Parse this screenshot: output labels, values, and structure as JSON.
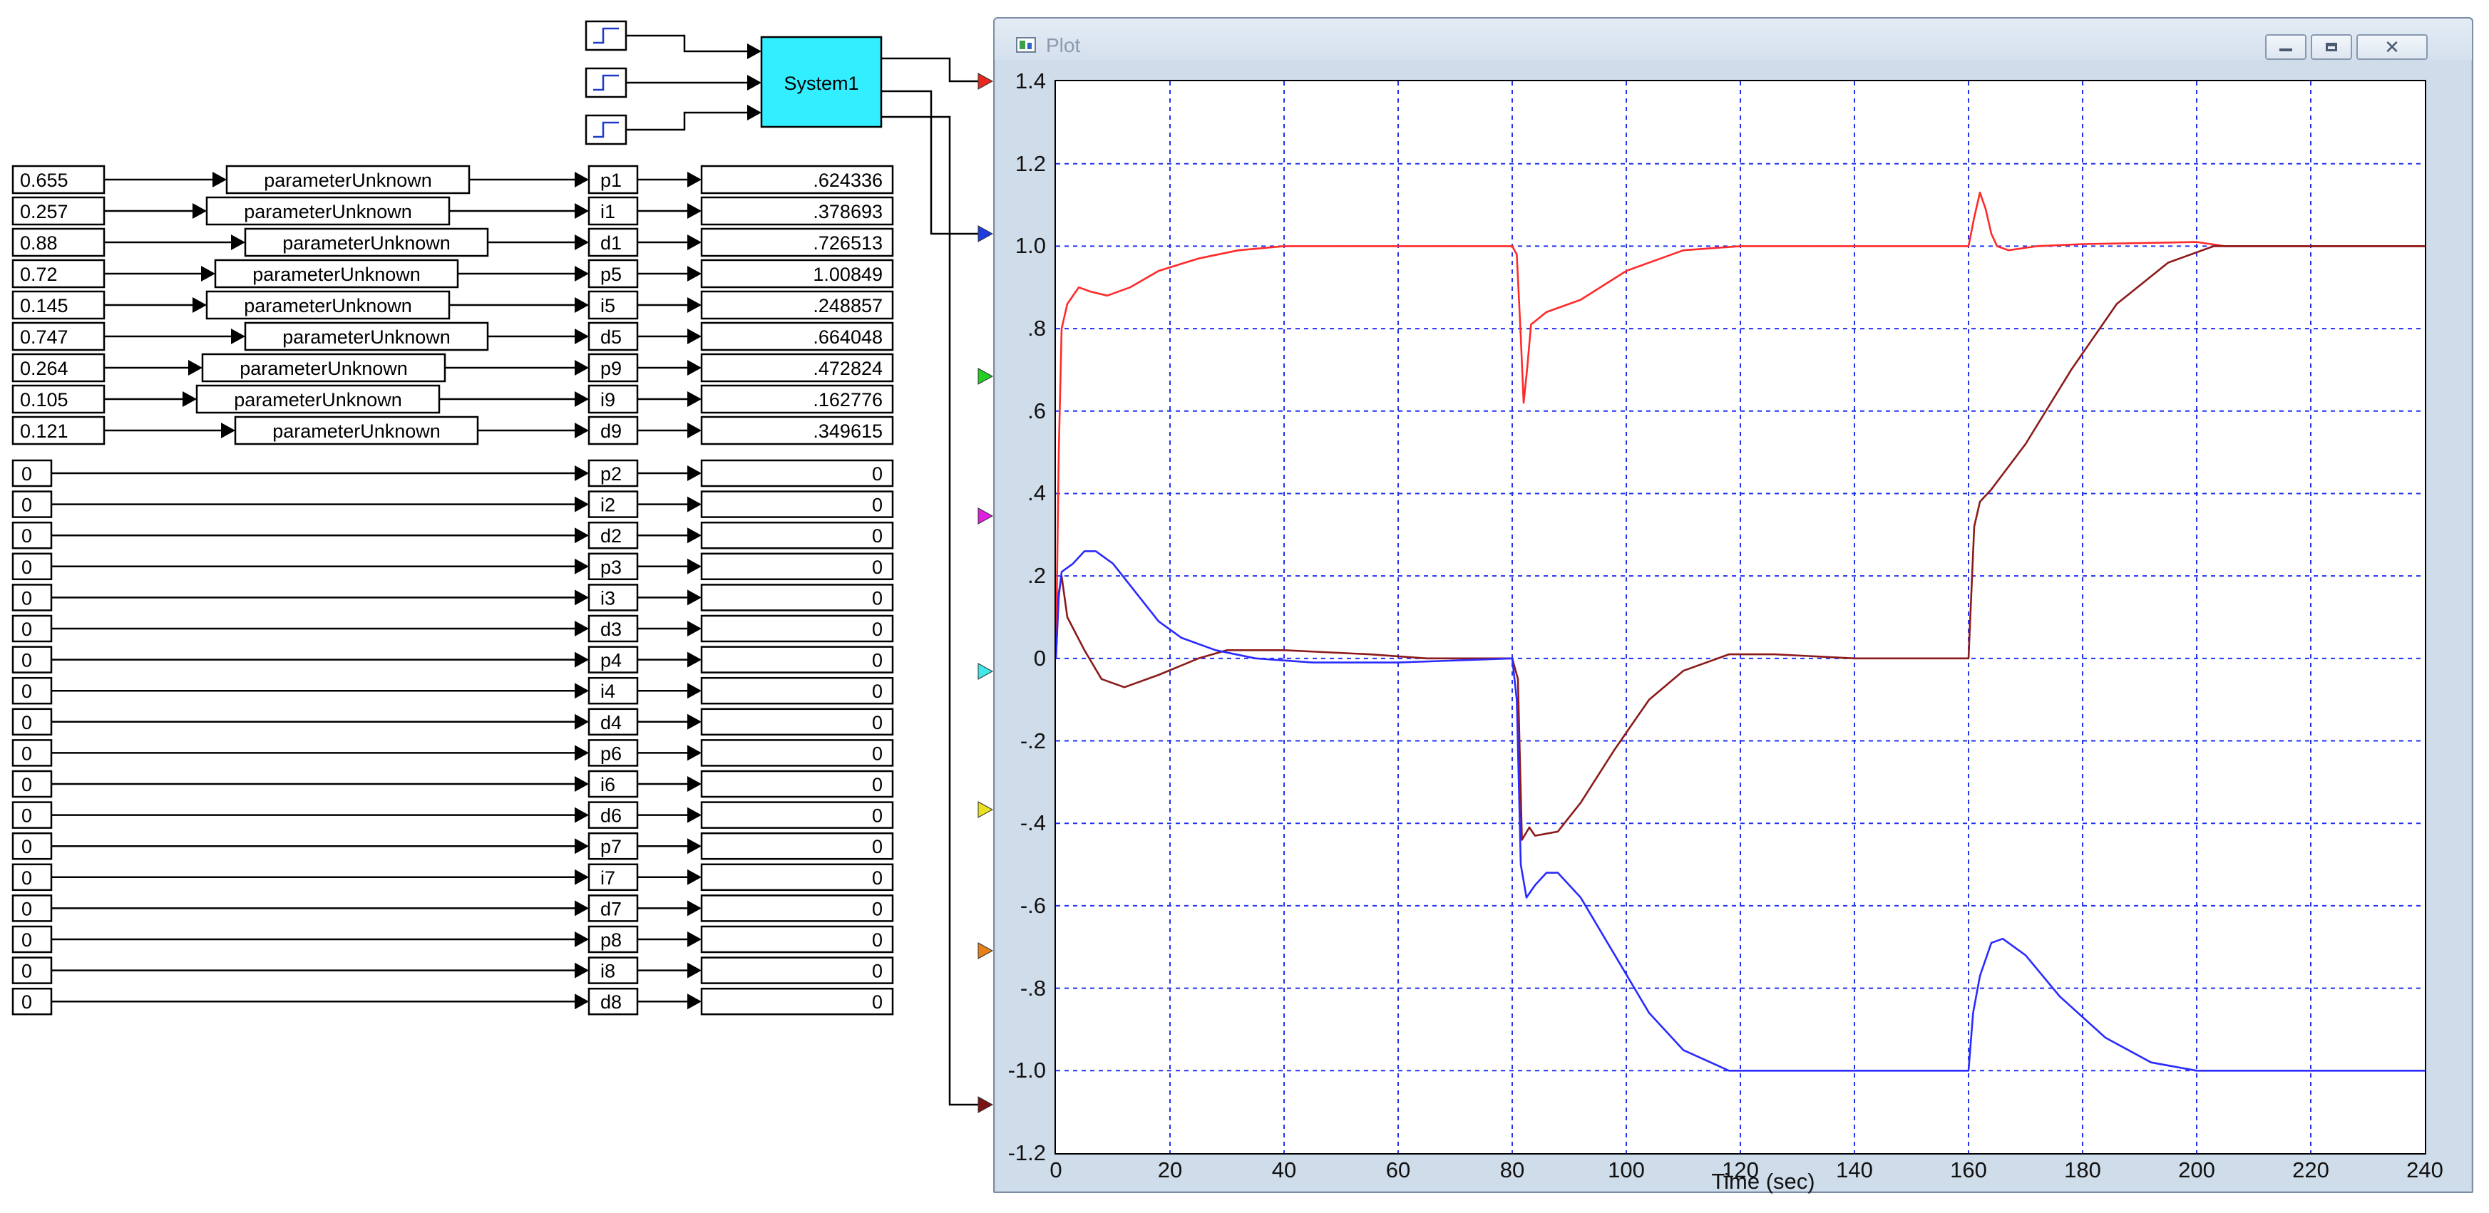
{
  "system_block": {
    "label": "System1",
    "color": "#33eeff"
  },
  "step_sources": [
    "step-1",
    "step-2",
    "step-3"
  ],
  "param_rows": [
    {
      "value": "0.655",
      "block": "parameterUnknown",
      "port": "p1",
      "output": ".624336"
    },
    {
      "value": "0.257",
      "block": "parameterUnknown",
      "port": "i1",
      "output": ".378693"
    },
    {
      "value": "0.88",
      "block": "parameterUnknown",
      "port": "d1",
      "output": ".726513"
    },
    {
      "value": "0.72",
      "block": "parameterUnknown",
      "port": "p5",
      "output": "1.00849"
    },
    {
      "value": "0.145",
      "block": "parameterUnknown",
      "port": "i5",
      "output": ".248857"
    },
    {
      "value": "0.747",
      "block": "parameterUnknown",
      "port": "d5",
      "output": ".664048"
    },
    {
      "value": "0.264",
      "block": "parameterUnknown",
      "port": "p9",
      "output": ".472824"
    },
    {
      "value": "0.105",
      "block": "parameterUnknown",
      "port": "i9",
      "output": ".162776"
    },
    {
      "value": "0.121",
      "block": "parameterUnknown",
      "port": "d9",
      "output": ".349615"
    }
  ],
  "zero_rows": [
    {
      "value": "0",
      "port": "p2",
      "output": "0"
    },
    {
      "value": "0",
      "port": "i2",
      "output": "0"
    },
    {
      "value": "0",
      "port": "d2",
      "output": "0"
    },
    {
      "value": "0",
      "port": "p3",
      "output": "0"
    },
    {
      "value": "0",
      "port": "i3",
      "output": "0"
    },
    {
      "value": "0",
      "port": "d3",
      "output": "0"
    },
    {
      "value": "0",
      "port": "p4",
      "output": "0"
    },
    {
      "value": "0",
      "port": "i4",
      "output": "0"
    },
    {
      "value": "0",
      "port": "d4",
      "output": "0"
    },
    {
      "value": "0",
      "port": "p6",
      "output": "0"
    },
    {
      "value": "0",
      "port": "i6",
      "output": "0"
    },
    {
      "value": "0",
      "port": "d6",
      "output": "0"
    },
    {
      "value": "0",
      "port": "p7",
      "output": "0"
    },
    {
      "value": "0",
      "port": "i7",
      "output": "0"
    },
    {
      "value": "0",
      "port": "d7",
      "output": "0"
    },
    {
      "value": "0",
      "port": "p8",
      "output": "0"
    },
    {
      "value": "0",
      "port": "i8",
      "output": "0"
    },
    {
      "value": "0",
      "port": "d8",
      "output": "0"
    }
  ],
  "plot_inputs": [
    {
      "name": "red",
      "color": "#e8281e"
    },
    {
      "name": "blue",
      "color": "#1e3ce0"
    },
    {
      "name": "green",
      "color": "#22d022"
    },
    {
      "name": "magenta",
      "color": "#e020e0"
    },
    {
      "name": "cyan",
      "color": "#40e8e8"
    },
    {
      "name": "yellow",
      "color": "#e8e020"
    },
    {
      "name": "orange",
      "color": "#e88018"
    },
    {
      "name": "dark-red",
      "color": "#7a1414"
    }
  ],
  "plot_window": {
    "title": "Plot",
    "minimize_icon": "minimize-icon",
    "maximize_icon": "maximize-icon",
    "close_icon": "close-icon",
    "close_glyph": "✕"
  },
  "chart_data": {
    "type": "line",
    "xlabel": "Time (sec)",
    "ylabel": "",
    "xlim": [
      0,
      240
    ],
    "ylim": [
      -1.2,
      1.4
    ],
    "x_ticks": [
      "0",
      "20",
      "40",
      "60",
      "80",
      "100",
      "120",
      "140",
      "160",
      "180",
      "200",
      "220",
      "240"
    ],
    "y_ticks": [
      "1.4",
      "1.2",
      "1.0",
      ".8",
      ".6",
      ".4",
      ".2",
      "0",
      "-.2",
      "-.4",
      "-.6",
      "-.8",
      "-1.0",
      "-1.2"
    ],
    "grid": true,
    "grid_color": "#2233ee",
    "series": [
      {
        "color": "#ff2a2a",
        "points": [
          [
            0,
            0
          ],
          [
            0.5,
            0.5
          ],
          [
            1,
            0.8
          ],
          [
            2,
            0.86
          ],
          [
            4,
            0.9
          ],
          [
            6,
            0.89
          ],
          [
            9,
            0.88
          ],
          [
            13,
            0.9
          ],
          [
            18,
            0.94
          ],
          [
            25,
            0.97
          ],
          [
            32,
            0.99
          ],
          [
            40,
            1.0
          ],
          [
            80,
            1.0
          ],
          [
            80.8,
            0.98
          ],
          [
            81.5,
            0.78
          ],
          [
            82,
            0.62
          ],
          [
            82.6,
            0.7
          ],
          [
            83.3,
            0.81
          ],
          [
            86,
            0.84
          ],
          [
            92,
            0.87
          ],
          [
            100,
            0.94
          ],
          [
            110,
            0.99
          ],
          [
            120,
            1.0
          ],
          [
            160,
            1.0
          ],
          [
            161,
            1.07
          ],
          [
            162,
            1.13
          ],
          [
            163,
            1.09
          ],
          [
            164,
            1.03
          ],
          [
            165,
            1.0
          ],
          [
            167,
            0.99
          ],
          [
            172,
            1.0
          ],
          [
            180,
            1.005
          ],
          [
            200,
            1.01
          ],
          [
            205,
            1.0
          ],
          [
            240,
            1.0
          ]
        ]
      },
      {
        "color": "#8b1a1a",
        "points": [
          [
            0,
            0
          ],
          [
            0.5,
            0.16
          ],
          [
            1,
            0.2
          ],
          [
            2,
            0.1
          ],
          [
            5,
            0.02
          ],
          [
            8,
            -0.05
          ],
          [
            12,
            -0.07
          ],
          [
            18,
            -0.04
          ],
          [
            25,
            0.0
          ],
          [
            30,
            0.02
          ],
          [
            40,
            0.02
          ],
          [
            55,
            0.01
          ],
          [
            65,
            0.0
          ],
          [
            80,
            0.0
          ],
          [
            81,
            -0.05
          ],
          [
            81.7,
            -0.44
          ],
          [
            83,
            -0.41
          ],
          [
            84,
            -0.43
          ],
          [
            88,
            -0.42
          ],
          [
            92,
            -0.35
          ],
          [
            98,
            -0.22
          ],
          [
            104,
            -0.1
          ],
          [
            110,
            -0.03
          ],
          [
            118,
            0.01
          ],
          [
            126,
            0.01
          ],
          [
            140,
            0.0
          ],
          [
            160,
            0.0
          ],
          [
            161,
            0.32
          ],
          [
            162,
            0.38
          ],
          [
            164,
            0.41
          ],
          [
            170,
            0.52
          ],
          [
            178,
            0.7
          ],
          [
            186,
            0.86
          ],
          [
            195,
            0.96
          ],
          [
            203,
            1.0
          ],
          [
            240,
            1.0
          ]
        ]
      },
      {
        "color": "#2a2aff",
        "points": [
          [
            0,
            0
          ],
          [
            0.5,
            0.15
          ],
          [
            1,
            0.21
          ],
          [
            3,
            0.23
          ],
          [
            5,
            0.26
          ],
          [
            7,
            0.26
          ],
          [
            10,
            0.23
          ],
          [
            14,
            0.16
          ],
          [
            18,
            0.09
          ],
          [
            22,
            0.05
          ],
          [
            28,
            0.02
          ],
          [
            35,
            0.0
          ],
          [
            45,
            -0.01
          ],
          [
            60,
            -0.01
          ],
          [
            80,
            0.0
          ],
          [
            80.8,
            -0.1
          ],
          [
            81.5,
            -0.5
          ],
          [
            82.5,
            -0.58
          ],
          [
            84,
            -0.55
          ],
          [
            86,
            -0.52
          ],
          [
            88,
            -0.52
          ],
          [
            92,
            -0.58
          ],
          [
            98,
            -0.72
          ],
          [
            104,
            -0.86
          ],
          [
            110,
            -0.95
          ],
          [
            118,
            -1.0
          ],
          [
            130,
            -1.0
          ],
          [
            160,
            -1.0
          ],
          [
            160.8,
            -0.86
          ],
          [
            162,
            -0.77
          ],
          [
            164,
            -0.69
          ],
          [
            166,
            -0.68
          ],
          [
            170,
            -0.72
          ],
          [
            176,
            -0.82
          ],
          [
            184,
            -0.92
          ],
          [
            192,
            -0.98
          ],
          [
            200,
            -1.0
          ],
          [
            240,
            -1.0
          ]
        ]
      }
    ]
  }
}
